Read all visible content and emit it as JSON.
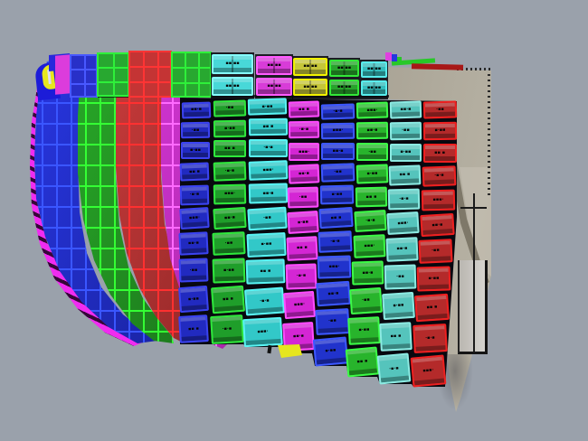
{
  "viewport": {
    "background": "#9aa1ab",
    "backdrop": "#08080f",
    "seam": "rgba(8,8,12,0.72)"
  },
  "label_glyphs": [
    "▪▪·▪",
    "·▪▪",
    "▪·▪▪",
    "▪▪ ▪",
    "·▪·▪",
    "▪▪▪·"
  ],
  "top_label_glyph": "▪▪ ▪▪",
  "surfaces": [
    {
      "id": "edge-magenta",
      "fill": "#f02cf0",
      "dash": "rgba(22,0,24,0.85)"
    },
    {
      "id": "hull-blue",
      "fill": "#2836e0",
      "dark": "#060a50",
      "grid": "#3a56ff"
    },
    {
      "id": "hull-green",
      "fill": "#2ab02a",
      "dark": "#0c360c",
      "grid": "#34ff34"
    },
    {
      "id": "hull-red",
      "fill": "#d84040",
      "dark": "#4c1010",
      "grid": "#ff3030"
    },
    {
      "id": "hull-magenta",
      "fill": "#e83ce8",
      "dark": "#6e146e",
      "grid": "#ff6aff"
    }
  ],
  "top_gridded_plates": [
    {
      "id": "plate-blue",
      "fill": "#2830c8",
      "grid": "#4858ff"
    },
    {
      "id": "plate-green-1",
      "fill": "#28a830",
      "grid": "#2ef03a"
    },
    {
      "id": "plate-red",
      "fill": "#c43434",
      "grid": "#ff3434"
    },
    {
      "id": "plate-green-2",
      "fill": "#28a830",
      "grid": "#2ef03a"
    }
  ],
  "top_columns": [
    {
      "id": "top-cyan-1",
      "fill": "#48d8d8",
      "border": "#86ffff",
      "rows": 2
    },
    {
      "id": "top-magenta",
      "fill": "#d83cd8",
      "border": "#ff5cff",
      "rows": 2
    },
    {
      "id": "top-yellow",
      "fill": "#c6c63a",
      "border": "#f2f200",
      "rows": 2
    },
    {
      "id": "top-green",
      "fill": "#28a42c",
      "border": "#32e838",
      "rows": 2
    },
    {
      "id": "top-cyan-2",
      "fill": "#34bcbc",
      "border": "#58ecec",
      "rows": 2
    }
  ],
  "main_columns": [
    {
      "id": "col-navy",
      "fill": "#212ac0",
      "border": "#3b43f0",
      "plates": 10
    },
    {
      "id": "col-green-dark",
      "fill": "#1f9e2a",
      "border": "#2fe83c",
      "plates": 10
    },
    {
      "id": "col-cyan",
      "fill": "#32c8c8",
      "border": "#5af4f4",
      "plates": 10
    },
    {
      "id": "col-magenta",
      "fill": "#d426d4",
      "border": "#ff4cff",
      "plates": 10
    },
    {
      "id": "col-blue",
      "fill": "#2133cc",
      "border": "#3c58ff",
      "plates": 11
    },
    {
      "id": "col-green",
      "fill": "#28b42c",
      "border": "#3cfa46",
      "plates": 11
    },
    {
      "id": "col-teal",
      "fill": "#55c4bc",
      "border": "#8ceae2",
      "plates": 11
    },
    {
      "id": "col-red",
      "fill": "#b42a2a",
      "border": "#ee2020",
      "plates": 11
    }
  ],
  "gray_structure": {
    "fill": "#a29c8e",
    "fill_dark": "#8e8779",
    "fill_light": "#b5b0a2",
    "slab": "#d6d4cf",
    "line": "#1a1a1a"
  },
  "accents": {
    "yellow_sliver": "#e6e61e",
    "green_strip": "#28c828",
    "red_strip": "#a81818",
    "magenta_chip": "#e040e0",
    "blue_chip": "#2438e0",
    "green_chip": "#28c828",
    "corner_blue": "#1c1cd8",
    "corner_yellow": "#e6e61e",
    "corner_white": "#dcdcf2",
    "wedge_blue": "#2828dc",
    "strip_magenta": "#dc3cdc"
  }
}
